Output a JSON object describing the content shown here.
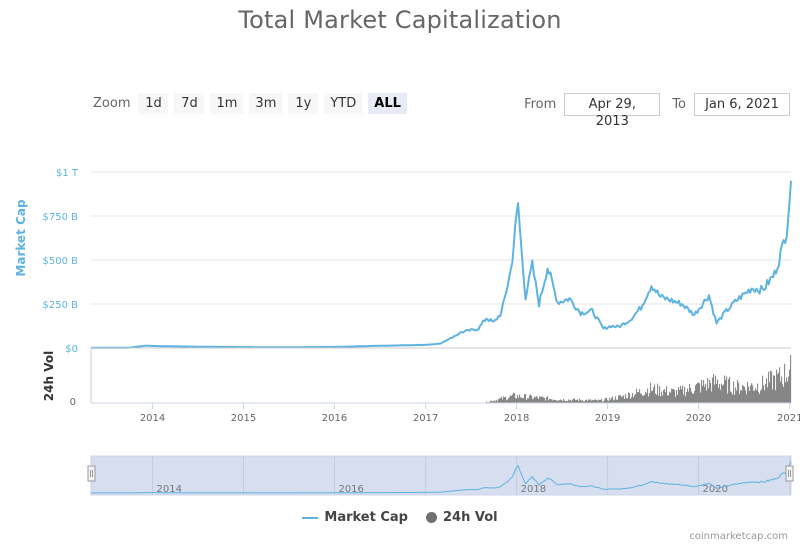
{
  "title": "Total Market Capitalization",
  "zoom": {
    "label": "Zoom",
    "buttons": [
      "1d",
      "7d",
      "1m",
      "3m",
      "1y",
      "YTD",
      "ALL"
    ],
    "active": "ALL"
  },
  "range": {
    "from_label": "From",
    "from_value": "Apr 29, 2013",
    "to_label": "To",
    "to_value": "Jan 6, 2021"
  },
  "legend": {
    "market_cap": "Market Cap",
    "volume": "24h Vol"
  },
  "credits": "coinmarketcap.com",
  "colors": {
    "line": "#5fb3e0",
    "volume": "#707070",
    "navigator_fill": "#d6deef",
    "grid": "#e6e6e6"
  },
  "chart_data": {
    "type": "line",
    "title": "Total Market Capitalization",
    "x_range": [
      "2013-04-29",
      "2021-01-06"
    ],
    "x_ticks": [
      "2014",
      "2015",
      "2016",
      "2017",
      "2018",
      "2019",
      "2020",
      "2021"
    ],
    "navigator_ticks": [
      "2014",
      "2016",
      "2018",
      "2020"
    ],
    "y_axis": {
      "label": "Market Cap",
      "unit": "B",
      "range": [
        0,
        1000
      ],
      "ticks": [
        "$0",
        "$250 B",
        "$500 B",
        "$750 B",
        "$1 T"
      ],
      "tick_values": [
        0,
        250,
        500,
        750,
        1000
      ]
    },
    "volume_axis": {
      "label": "24h Vol",
      "ticks": [
        "0"
      ]
    },
    "series": [
      {
        "name": "Market Cap",
        "points": [
          [
            "2013-04-29",
            1.5
          ],
          [
            "2013-10-01",
            2
          ],
          [
            "2013-12-04",
            13
          ],
          [
            "2014-01-15",
            11
          ],
          [
            "2014-06-01",
            8
          ],
          [
            "2015-01-01",
            5
          ],
          [
            "2015-06-01",
            4
          ],
          [
            "2016-01-01",
            6
          ],
          [
            "2016-06-15",
            12
          ],
          [
            "2017-01-01",
            18
          ],
          [
            "2017-03-01",
            25
          ],
          [
            "2017-05-25",
            90
          ],
          [
            "2017-08-01",
            110
          ],
          [
            "2017-09-01",
            170
          ],
          [
            "2017-10-01",
            145
          ],
          [
            "2017-11-01",
            200
          ],
          [
            "2017-12-10",
            450
          ],
          [
            "2017-12-20",
            580
          ],
          [
            "2018-01-07",
            820
          ],
          [
            "2018-01-20",
            560
          ],
          [
            "2018-02-06",
            290
          ],
          [
            "2018-03-05",
            470
          ],
          [
            "2018-04-01",
            250
          ],
          [
            "2018-05-05",
            460
          ],
          [
            "2018-06-15",
            260
          ],
          [
            "2018-08-01",
            280
          ],
          [
            "2018-09-15",
            200
          ],
          [
            "2018-11-01",
            210
          ],
          [
            "2018-12-15",
            110
          ],
          [
            "2019-01-15",
            125
          ],
          [
            "2019-02-15",
            120
          ],
          [
            "2019-04-01",
            160
          ],
          [
            "2019-05-15",
            230
          ],
          [
            "2019-06-26",
            360
          ],
          [
            "2019-08-01",
            290
          ],
          [
            "2019-09-15",
            270
          ],
          [
            "2019-10-26",
            250
          ],
          [
            "2019-12-15",
            190
          ],
          [
            "2020-02-12",
            300
          ],
          [
            "2020-03-13",
            140
          ],
          [
            "2020-04-15",
            200
          ],
          [
            "2020-06-01",
            270
          ],
          [
            "2020-08-01",
            340
          ],
          [
            "2020-09-15",
            330
          ],
          [
            "2020-11-01",
            420
          ],
          [
            "2020-12-01",
            560
          ],
          [
            "2020-12-20",
            680
          ],
          [
            "2021-01-06",
            950
          ]
        ]
      },
      {
        "name": "24h Vol",
        "envelope": [
          [
            "2017-09-01",
            0.03
          ],
          [
            "2017-12-20",
            0.2
          ],
          [
            "2018-03-01",
            0.16
          ],
          [
            "2018-07-01",
            0.1
          ],
          [
            "2018-12-01",
            0.07
          ],
          [
            "2019-03-01",
            0.18
          ],
          [
            "2019-06-20",
            0.4
          ],
          [
            "2019-10-01",
            0.3
          ],
          [
            "2020-03-13",
            0.6
          ],
          [
            "2020-06-01",
            0.45
          ],
          [
            "2020-09-01",
            0.5
          ],
          [
            "2020-12-01",
            0.75
          ],
          [
            "2021-01-06",
            1.0
          ]
        ]
      }
    ],
    "grid": true
  }
}
